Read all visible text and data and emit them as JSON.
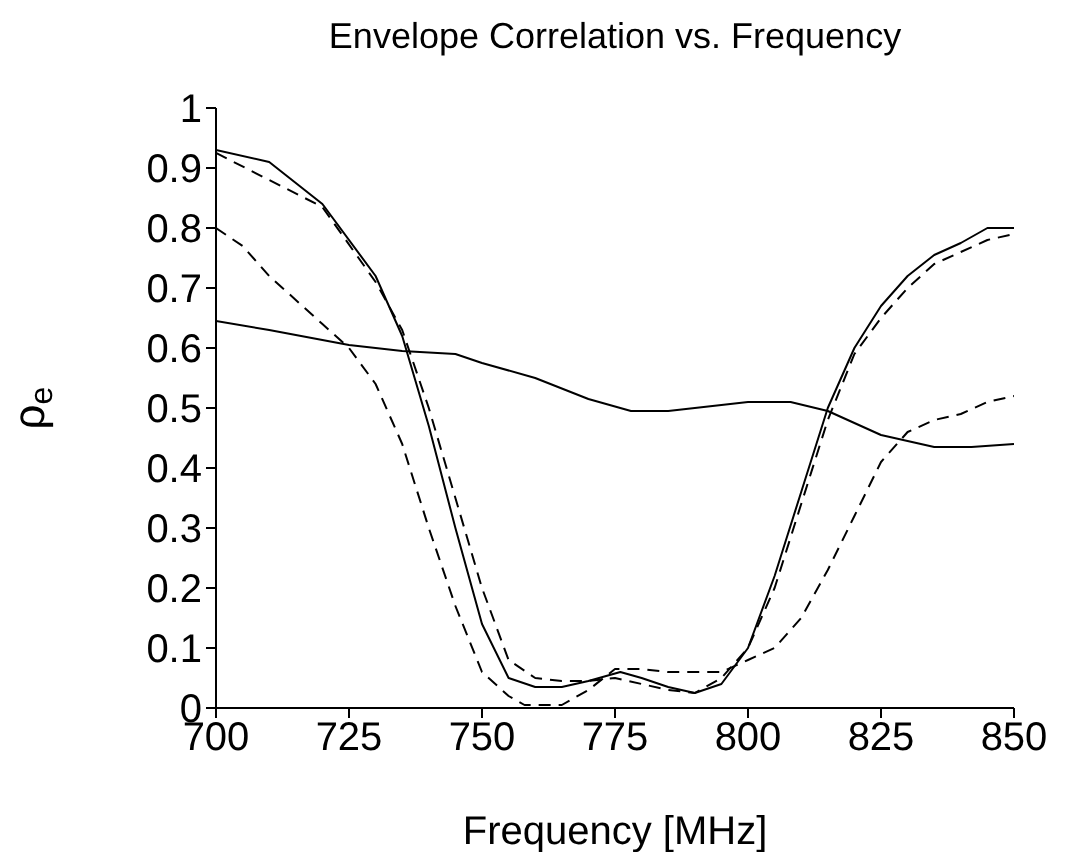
{
  "chart_data": {
    "type": "line",
    "title": "Envelope Correlation vs. Frequency",
    "xlabel": "Frequency [MHz]",
    "ylabel": "ρ$_{e}$",
    "xlim": [
      700,
      850
    ],
    "xticks": [
      700,
      725,
      750,
      775,
      800,
      825,
      850
    ],
    "ylim": [
      0,
      1
    ],
    "yticks": [
      0,
      0.1,
      0.2,
      0.3,
      0.4,
      0.5,
      0.6,
      0.7,
      0.8,
      0.9,
      1
    ],
    "grid": false,
    "legend": false,
    "marker": "none",
    "series": [
      {
        "color": "#000000",
        "line_style": "solid",
        "x": [
          700,
          710,
          725,
          735,
          745,
          750,
          760,
          770,
          778,
          785,
          790,
          800,
          808,
          815,
          825,
          835,
          842,
          850
        ],
        "values": [
          0.645,
          0.63,
          0.605,
          0.595,
          0.59,
          0.575,
          0.55,
          0.515,
          0.495,
          0.495,
          0.5,
          0.51,
          0.51,
          0.495,
          0.455,
          0.435,
          0.435,
          0.44
        ]
      },
      {
        "color": "#000000",
        "line_style": "solid",
        "x": [
          700,
          710,
          720,
          730,
          735,
          740,
          745,
          750,
          755,
          760,
          765,
          770,
          776,
          780,
          785,
          790,
          795,
          800,
          805,
          810,
          815,
          820,
          825,
          830,
          835,
          840,
          845,
          850
        ],
        "values": [
          0.93,
          0.91,
          0.84,
          0.72,
          0.62,
          0.47,
          0.3,
          0.14,
          0.05,
          0.035,
          0.035,
          0.045,
          0.06,
          0.05,
          0.035,
          0.025,
          0.04,
          0.1,
          0.22,
          0.36,
          0.5,
          0.6,
          0.67,
          0.72,
          0.755,
          0.775,
          0.8,
          0.8
        ]
      },
      {
        "color": "#000000",
        "line_style": "dashed",
        "x": [
          700,
          720,
          730,
          735,
          740,
          745,
          750,
          755,
          760,
          765,
          770,
          775,
          780,
          785,
          790,
          795,
          800,
          805,
          810,
          815,
          820,
          825,
          830,
          835,
          840,
          845,
          850
        ],
        "values": [
          0.925,
          0.835,
          0.71,
          0.63,
          0.5,
          0.35,
          0.2,
          0.08,
          0.05,
          0.045,
          0.045,
          0.05,
          0.04,
          0.03,
          0.025,
          0.05,
          0.1,
          0.2,
          0.34,
          0.48,
          0.59,
          0.65,
          0.7,
          0.74,
          0.76,
          0.78,
          0.79
        ]
      },
      {
        "color": "#000000",
        "line_style": "dashed",
        "x": [
          700,
          705,
          710,
          720,
          725,
          730,
          735,
          740,
          745,
          750,
          755,
          758,
          765,
          770,
          775,
          780,
          785,
          790,
          795,
          800,
          805,
          810,
          815,
          820,
          825,
          830,
          835,
          840,
          845,
          850
        ],
        "values": [
          0.8,
          0.77,
          0.72,
          0.64,
          0.6,
          0.54,
          0.44,
          0.3,
          0.17,
          0.06,
          0.02,
          0.005,
          0.005,
          0.03,
          0.065,
          0.065,
          0.06,
          0.06,
          0.06,
          0.08,
          0.1,
          0.15,
          0.23,
          0.32,
          0.41,
          0.46,
          0.48,
          0.49,
          0.51,
          0.52
        ]
      }
    ]
  }
}
